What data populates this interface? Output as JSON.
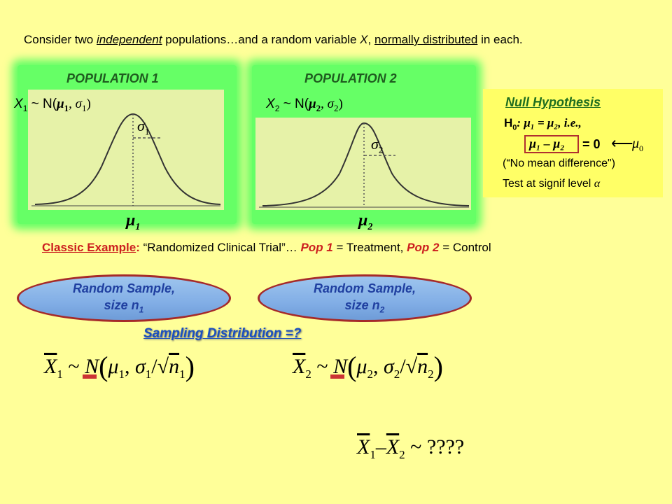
{
  "header": {
    "prefix": "Consider two",
    "independent": "independent",
    "middle": "populations…and a random variable",
    "var": "X",
    "comma": ",",
    "normally": "normally distributed",
    "suffix": "in each."
  },
  "populations": [
    {
      "title": "POPULATION 1",
      "var": "X",
      "sub": "1",
      "dist_open": " ~ N(",
      "mu": "μ",
      "mu_sub": "1",
      "sigma": "σ",
      "sigma_sub": "1",
      "close": ")",
      "sigma_label": "σ",
      "sigma_label_sub": "1",
      "mu_label": "μ",
      "mu_label_sub": "1"
    },
    {
      "title": "POPULATION 2",
      "var": "X",
      "sub": "2",
      "dist_open": " ~ N(",
      "mu": "μ",
      "mu_sub": "2",
      "sigma": "σ",
      "sigma_sub": "2",
      "close": ")",
      "sigma_label": "σ",
      "sigma_label_sub": "2",
      "mu_label": "μ",
      "mu_label_sub": "2"
    }
  ],
  "null_hypothesis": {
    "title": "Null Hypothesis",
    "h": "H",
    "h_sub": "0",
    "line1": ":  μ₁ = μ₂,  i.e.,",
    "line2_expr": "μ₁ – μ₂",
    "line2_eq": "= 0",
    "arrow": "⟵",
    "mu0": "μ",
    "mu0_sub": "0",
    "line3": "(“No mean difference\")",
    "line4": "Test at signif level",
    "alpha": "α"
  },
  "classic": {
    "label": "Classic Example",
    "colon": ":",
    "quote": "“Randomized Clinical Trial”…",
    "pop1": "Pop 1",
    "eq1": "= Treatment,",
    "pop2": "Pop 2",
    "eq2": "= Control"
  },
  "samples": [
    {
      "line1": "Random Sample,",
      "line2": "size n",
      "sub": "1"
    },
    {
      "line1": "Random Sample,",
      "line2": "size n",
      "sub": "2"
    }
  ],
  "sampling_title": "Sampling Distribution =?",
  "formulas": {
    "f1": {
      "xbar": "X",
      "sub": "1",
      "tilde": "~",
      "n": "N",
      "mu": "μ",
      "mu_sub": "1",
      "sigma": "σ",
      "sigma_sub": "1",
      "nn": "n",
      "nn_sub": "1"
    },
    "f2": {
      "xbar": "X",
      "sub": "2",
      "tilde": "~",
      "n": "N",
      "mu": "μ",
      "mu_sub": "2",
      "sigma": "σ",
      "sigma_sub": "2",
      "nn": "n",
      "nn_sub": "2"
    },
    "diff": {
      "x1": "X",
      "s1": "1",
      "minus": "–",
      "x2": "X",
      "s2": "2",
      "tail": "~ ????"
    }
  },
  "colors": {
    "background": "#ffff99",
    "glow": "#66ff66",
    "curve_panel": "#e6f2a8",
    "red": "#cc1f1f",
    "blue": "#1a4fbf"
  }
}
